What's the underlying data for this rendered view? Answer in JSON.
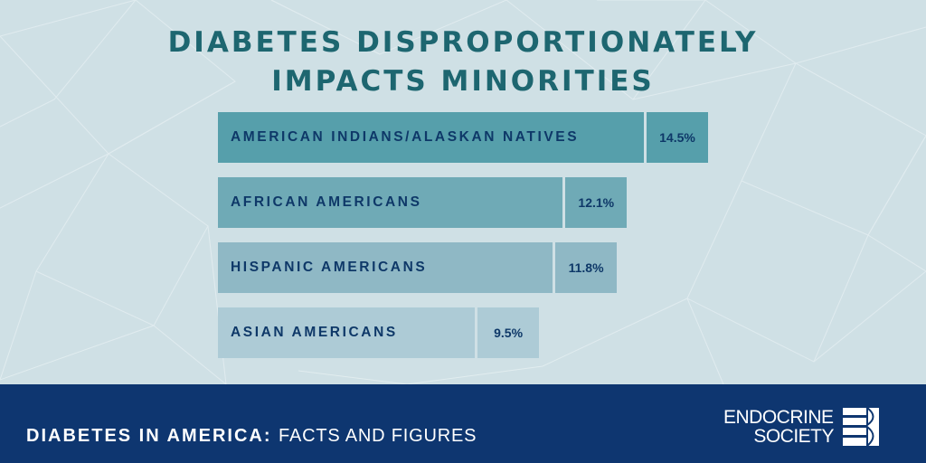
{
  "chart_data": {
    "type": "bar",
    "orientation": "horizontal",
    "title_lines": [
      "DIABETES DISPROPORTIONATELY",
      "IMPACTS MINORITIES"
    ],
    "categories": [
      "AMERICAN INDIANS/ALASKAN NATIVES",
      "AFRICAN AMERICANS",
      "HISPANIC AMERICANS",
      "ASIAN AMERICANS"
    ],
    "values": [
      14.5,
      12.1,
      11.8,
      9.5
    ],
    "value_labels": [
      "14.5%",
      "12.1%",
      "11.8%",
      "9.5%"
    ],
    "bar_colors": [
      "#569fab",
      "#6faab6",
      "#8fb8c5",
      "#adcbd6"
    ],
    "unit": "%"
  },
  "footer": {
    "bold_text": "DIABETES IN AMERICA:",
    "light_text": "FACTS AND FIGURES",
    "background": "#0e3670"
  },
  "logo": {
    "line1": "ENDOCRINE",
    "line2": "SOCIETY"
  },
  "colors": {
    "background": "#cfe0e5",
    "title": "#1d6670",
    "label": "#0e3868"
  }
}
